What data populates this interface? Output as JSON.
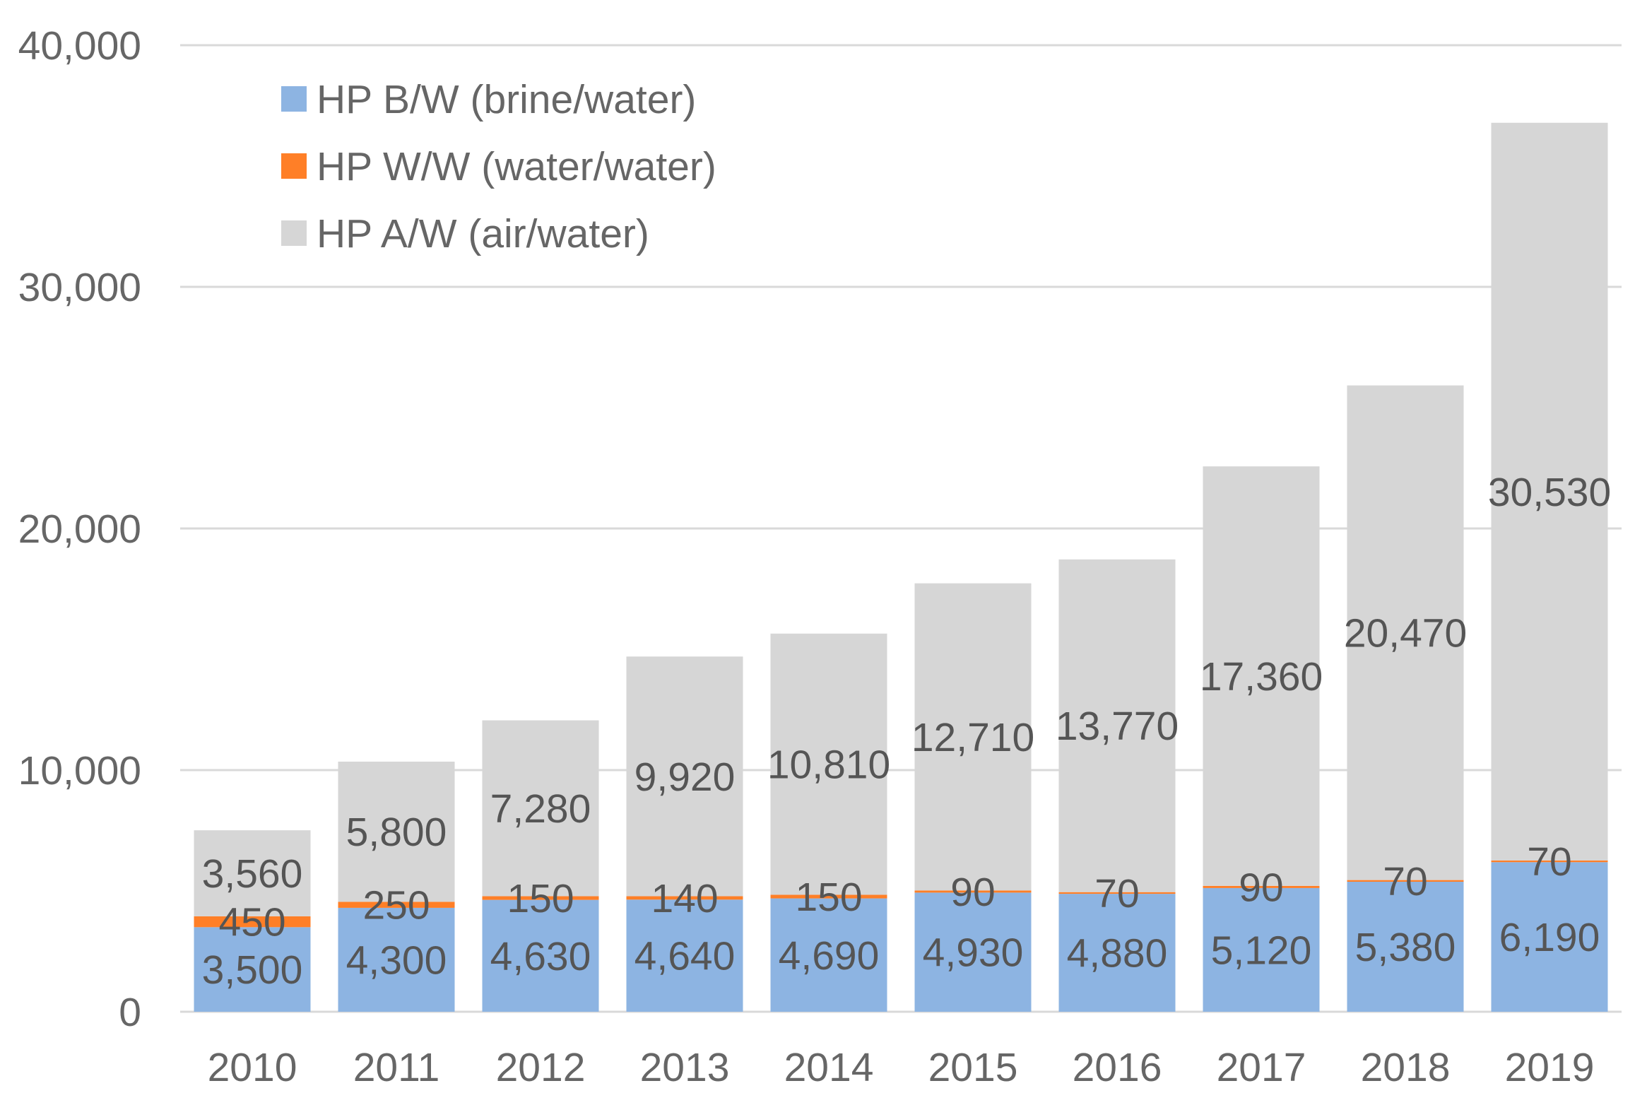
{
  "chart_data": {
    "type": "bar",
    "stacked": true,
    "title": "",
    "xlabel": "",
    "ylabel": "",
    "ylim": [
      0,
      40000
    ],
    "yticks": [
      0,
      10000,
      20000,
      30000,
      40000
    ],
    "ytick_labels": [
      "0",
      "10,000",
      "20,000",
      "30,000",
      "40,000"
    ],
    "grid": true,
    "legend_position": "top-left",
    "categories": [
      "2010",
      "2011",
      "2012",
      "2013",
      "2014",
      "2015",
      "2016",
      "2017",
      "2018",
      "2019"
    ],
    "series": [
      {
        "name": "HP B/W (brine/water)",
        "color": "#8db4e2",
        "values": [
          3500,
          4300,
          4630,
          4640,
          4690,
          4930,
          4880,
          5120,
          5380,
          6190
        ],
        "labels": [
          "3,500",
          "4,300",
          "4,630",
          "4,640",
          "4,690",
          "4,930",
          "4,880",
          "5,120",
          "5,380",
          "6,190"
        ]
      },
      {
        "name": "HP W/W (water/water)",
        "color": "#ff7f27",
        "values": [
          450,
          250,
          150,
          140,
          150,
          90,
          70,
          90,
          70,
          70
        ],
        "labels": [
          "450",
          "250",
          "150",
          "140",
          "150",
          "90",
          "70",
          "90",
          "70",
          "70"
        ]
      },
      {
        "name": "HP A/W (air/water)",
        "color": "#d6d6d6",
        "values": [
          3560,
          5800,
          7280,
          9920,
          10810,
          12710,
          13770,
          17360,
          20470,
          30530
        ],
        "labels": [
          "3,560",
          "5,800",
          "7,280",
          "9,920",
          "10,810",
          "12,710",
          "13,770",
          "17,360",
          "20,470",
          "30,530"
        ]
      }
    ]
  },
  "colors": {
    "gridline": "#d9d9d9",
    "axis": "#d9d9d9",
    "tick_text": "#666666",
    "data_label_text": "#555555"
  }
}
